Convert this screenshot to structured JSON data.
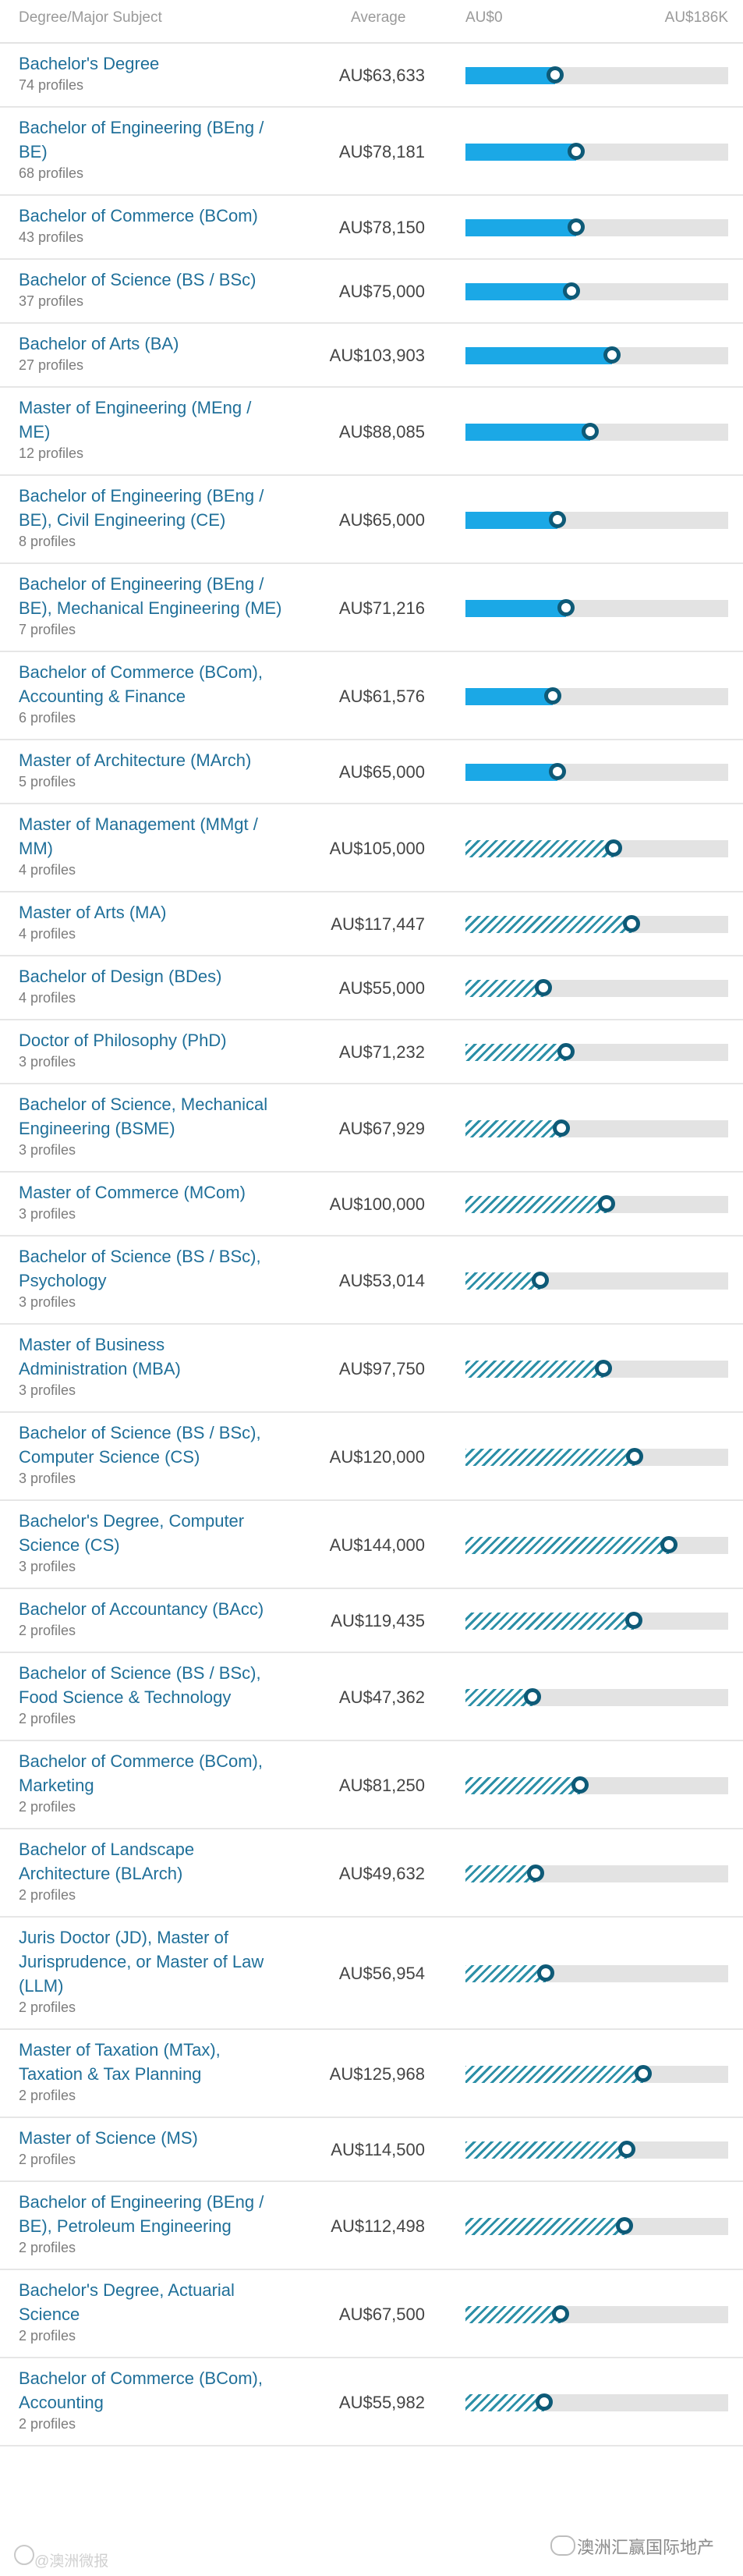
{
  "header": {
    "subject": "Degree/Major Subject",
    "average": "Average",
    "axis_min": "AU$0",
    "axis_max": "AU$186K"
  },
  "watermark": {
    "left": "@澳洲微报",
    "right": "澳洲汇赢国际地产"
  },
  "colors": {
    "solid_bar": "#1ba8e6",
    "hatched_bar": "#2b8fa7",
    "marker": "#0e5a77",
    "track": "#e3e3e3",
    "link": "#1f6f99"
  },
  "chart_data": {
    "type": "bar",
    "orientation": "horizontal",
    "xlim": [
      0,
      186000
    ],
    "rows": [
      {
        "name": "Bachelor's Degree",
        "profiles": "74 profiles",
        "value": 63633,
        "display": "AU$63,633",
        "style": "solid"
      },
      {
        "name": "Bachelor of Engineering (BEng / BE)",
        "profiles": "68 profiles",
        "value": 78181,
        "display": "AU$78,181",
        "style": "solid"
      },
      {
        "name": "Bachelor of Commerce (BCom)",
        "profiles": "43 profiles",
        "value": 78150,
        "display": "AU$78,150",
        "style": "solid"
      },
      {
        "name": "Bachelor of Science (BS / BSc)",
        "profiles": "37 profiles",
        "value": 75000,
        "display": "AU$75,000",
        "style": "solid"
      },
      {
        "name": "Bachelor of Arts (BA)",
        "profiles": "27 profiles",
        "value": 103903,
        "display": "AU$103,903",
        "style": "solid"
      },
      {
        "name": "Master of Engineering (MEng / ME)",
        "profiles": "12 profiles",
        "value": 88085,
        "display": "AU$88,085",
        "style": "solid"
      },
      {
        "name": "Bachelor of Engineering (BEng / BE), Civil Engineering (CE)",
        "profiles": "8 profiles",
        "value": 65000,
        "display": "AU$65,000",
        "style": "solid"
      },
      {
        "name": "Bachelor of Engineering (BEng / BE), Mechanical Engineering (ME)",
        "profiles": "7 profiles",
        "value": 71216,
        "display": "AU$71,216",
        "style": "solid"
      },
      {
        "name": "Bachelor of Commerce (BCom), Accounting & Finance",
        "profiles": "6 profiles",
        "value": 61576,
        "display": "AU$61,576",
        "style": "solid"
      },
      {
        "name": "Master of Architecture (MArch)",
        "profiles": "5 profiles",
        "value": 65000,
        "display": "AU$65,000",
        "style": "solid"
      },
      {
        "name": "Master of Management (MMgt / MM)",
        "profiles": "4 profiles",
        "value": 105000,
        "display": "AU$105,000",
        "style": "hatched"
      },
      {
        "name": "Master of Arts (MA)",
        "profiles": "4 profiles",
        "value": 117447,
        "display": "AU$117,447",
        "style": "hatched"
      },
      {
        "name": "Bachelor of Design (BDes)",
        "profiles": "4 profiles",
        "value": 55000,
        "display": "AU$55,000",
        "style": "hatched"
      },
      {
        "name": "Doctor of Philosophy (PhD)",
        "profiles": "3 profiles",
        "value": 71232,
        "display": "AU$71,232",
        "style": "hatched"
      },
      {
        "name": "Bachelor of Science, Mechanical Engineering (BSME)",
        "profiles": "3 profiles",
        "value": 67929,
        "display": "AU$67,929",
        "style": "hatched"
      },
      {
        "name": "Master of Commerce (MCom)",
        "profiles": "3 profiles",
        "value": 100000,
        "display": "AU$100,000",
        "style": "hatched"
      },
      {
        "name": "Bachelor of Science (BS / BSc), Psychology",
        "profiles": "3 profiles",
        "value": 53014,
        "display": "AU$53,014",
        "style": "hatched"
      },
      {
        "name": "Master of Business Administration (MBA)",
        "profiles": "3 profiles",
        "value": 97750,
        "display": "AU$97,750",
        "style": "hatched"
      },
      {
        "name": "Bachelor of Science (BS / BSc), Computer Science (CS)",
        "profiles": "3 profiles",
        "value": 120000,
        "display": "AU$120,000",
        "style": "hatched"
      },
      {
        "name": "Bachelor's Degree, Computer Science (CS)",
        "profiles": "3 profiles",
        "value": 144000,
        "display": "AU$144,000",
        "style": "hatched"
      },
      {
        "name": "Bachelor of Accountancy (BAcc)",
        "profiles": "2 profiles",
        "value": 119435,
        "display": "AU$119,435",
        "style": "hatched"
      },
      {
        "name": "Bachelor of Science (BS / BSc), Food Science & Technology",
        "profiles": "2 profiles",
        "value": 47362,
        "display": "AU$47,362",
        "style": "hatched"
      },
      {
        "name": "Bachelor of Commerce (BCom), Marketing",
        "profiles": "2 profiles",
        "value": 81250,
        "display": "AU$81,250",
        "style": "hatched"
      },
      {
        "name": "Bachelor of Landscape Architecture (BLArch)",
        "profiles": "2 profiles",
        "value": 49632,
        "display": "AU$49,632",
        "style": "hatched"
      },
      {
        "name": "Juris Doctor (JD), Master of Jurisprudence, or Master of Law (LLM)",
        "profiles": "2 profiles",
        "value": 56954,
        "display": "AU$56,954",
        "style": "hatched"
      },
      {
        "name": "Master of Taxation (MTax), Taxation & Tax Planning",
        "profiles": "2 profiles",
        "value": 125968,
        "display": "AU$125,968",
        "style": "hatched"
      },
      {
        "name": "Master of Science (MS)",
        "profiles": "2 profiles",
        "value": 114500,
        "display": "AU$114,500",
        "style": "hatched"
      },
      {
        "name": "Bachelor of Engineering (BEng / BE), Petroleum Engineering",
        "profiles": "2 profiles",
        "value": 112498,
        "display": "AU$112,498",
        "style": "hatched"
      },
      {
        "name": "Bachelor's Degree, Actuarial Science",
        "profiles": "2 profiles",
        "value": 67500,
        "display": "AU$67,500",
        "style": "hatched"
      },
      {
        "name": "Bachelor of Commerce (BCom), Accounting",
        "profiles": "2 profiles",
        "value": 55982,
        "display": "AU$55,982",
        "style": "hatched"
      }
    ]
  }
}
